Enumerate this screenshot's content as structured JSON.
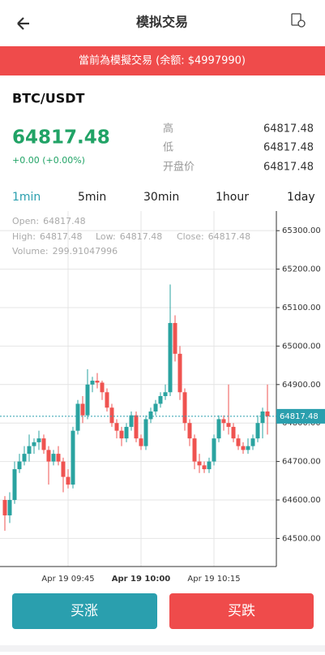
{
  "header": {
    "title": "模拟交易"
  },
  "banner": "當前為模擬交易 (余额: $4997990)",
  "pair": "BTC/USDT",
  "price": {
    "last": 64817.48,
    "change": "+0.00 (+0.00%)"
  },
  "stats": [
    {
      "label": "高",
      "value": 64817.48
    },
    {
      "label": "低",
      "value": 64817.48
    },
    {
      "label": "开盘价",
      "value": 64817.48
    }
  ],
  "tabs": [
    "1min",
    "5min",
    "30min",
    "1hour",
    "1day"
  ],
  "buttons": [
    "买涨",
    "买跌"
  ],
  "chart_data": {
    "type": "candlestick",
    "info": [
      {
        "label": "Open:",
        "value": 64817.48
      },
      {
        "label": "High:",
        "value": 64817.48
      },
      {
        "label": "Low:",
        "value": 64817.48
      },
      {
        "label": "Close:",
        "value": 64817.48
      },
      {
        "label": "Volume:",
        "value": 299.91047996
      }
    ],
    "up_color": "#2aa3a0",
    "down_color": "#ef5350",
    "grid": true,
    "categories": [
      null,
      null,
      null,
      null,
      null,
      null,
      null,
      null,
      null,
      null,
      null,
      null,
      null,
      "Apr 19 09:45",
      null,
      null,
      null,
      null,
      null,
      null,
      null,
      null,
      null,
      null,
      null,
      null,
      null,
      null,
      "Apr 19 10:00",
      null,
      null,
      null,
      null,
      null,
      null,
      null,
      null,
      null,
      null,
      null,
      null,
      null,
      null,
      "Apr 19 10:15",
      null,
      null,
      null,
      null,
      null,
      null,
      null,
      null,
      null,
      null,
      null
    ],
    "ohlc": [
      [
        64600,
        64610,
        64520,
        64560
      ],
      [
        64560,
        64620,
        64540,
        64600
      ],
      [
        64600,
        64700,
        64590,
        64680
      ],
      [
        64680,
        64720,
        64670,
        64700
      ],
      [
        64700,
        64740,
        64690,
        64720
      ],
      [
        64720,
        64770,
        64700,
        64740
      ],
      [
        64740,
        64760,
        64720,
        64750
      ],
      [
        64750,
        64780,
        64730,
        64760
      ],
      [
        64760,
        64770,
        64720,
        64730
      ],
      [
        64730,
        64740,
        64640,
        64700
      ],
      [
        64700,
        64730,
        64690,
        64720
      ],
      [
        64720,
        64740,
        64690,
        64700
      ],
      [
        64700,
        64710,
        64620,
        64660
      ],
      [
        64660,
        64680,
        64630,
        64640
      ],
      [
        64640,
        64790,
        64630,
        64780
      ],
      [
        64780,
        64860,
        64770,
        64850
      ],
      [
        64850,
        64870,
        64800,
        64820
      ],
      [
        64820,
        64940,
        64810,
        64900
      ],
      [
        64900,
        64920,
        64880,
        64910
      ],
      [
        64910,
        64930,
        64890,
        64905
      ],
      [
        64905,
        64910,
        64860,
        64880
      ],
      [
        64880,
        64890,
        64830,
        64840
      ],
      [
        64840,
        64850,
        64790,
        64800
      ],
      [
        64800,
        64810,
        64760,
        64780
      ],
      [
        64780,
        64790,
        64740,
        64760
      ],
      [
        64760,
        64800,
        64750,
        64790
      ],
      [
        64790,
        64830,
        64780,
        64820
      ],
      [
        64820,
        64830,
        64750,
        64760
      ],
      [
        64760,
        64770,
        64730,
        64740
      ],
      [
        64740,
        64820,
        64730,
        64810
      ],
      [
        64810,
        64840,
        64800,
        64830
      ],
      [
        64830,
        64860,
        64820,
        64850
      ],
      [
        64850,
        64880,
        64840,
        64870
      ],
      [
        64870,
        64900,
        64860,
        64880
      ],
      [
        64880,
        65160,
        64870,
        65060
      ],
      [
        65060,
        65080,
        64960,
        64980
      ],
      [
        64980,
        65000,
        64860,
        64880
      ],
      [
        64880,
        64890,
        64780,
        64800
      ],
      [
        64800,
        64810,
        64740,
        64760
      ],
      [
        64760,
        64770,
        64680,
        64700
      ],
      [
        64700,
        64720,
        64670,
        64690
      ],
      [
        64690,
        64700,
        64670,
        64680
      ],
      [
        64680,
        64710,
        64670,
        64700
      ],
      [
        64700,
        64770,
        64690,
        64760
      ],
      [
        64760,
        64820,
        64750,
        64810
      ],
      [
        64810,
        64820,
        64780,
        64800
      ],
      [
        64800,
        64900,
        64770,
        64790
      ],
      [
        64790,
        64800,
        64750,
        64760
      ],
      [
        64760,
        64770,
        64730,
        64740
      ],
      [
        64740,
        64750,
        64720,
        64730
      ],
      [
        64730,
        64760,
        64720,
        64740
      ],
      [
        64740,
        64770,
        64730,
        64760
      ],
      [
        64760,
        64820,
        64750,
        64800
      ],
      [
        64800,
        64840,
        64760,
        64830
      ],
      [
        64830,
        64900,
        64770,
        64817.48
      ]
    ],
    "ylim": [
      64427,
      65351
    ],
    "yticks": [
      {
        "value": 64500,
        "label": "64500.00"
      },
      {
        "value": 64600,
        "label": "64600.00"
      },
      {
        "value": 64700,
        "label": "64700.00"
      },
      {
        "value": 64800,
        "label": "64800.00"
      },
      {
        "value": 64900,
        "label": "64900.00"
      },
      {
        "value": 65000,
        "label": "65000.00"
      },
      {
        "value": 65100,
        "label": "65100.00"
      },
      {
        "value": 65200,
        "label": "65200.00"
      },
      {
        "value": 65300,
        "label": "65300.00"
      }
    ]
  }
}
